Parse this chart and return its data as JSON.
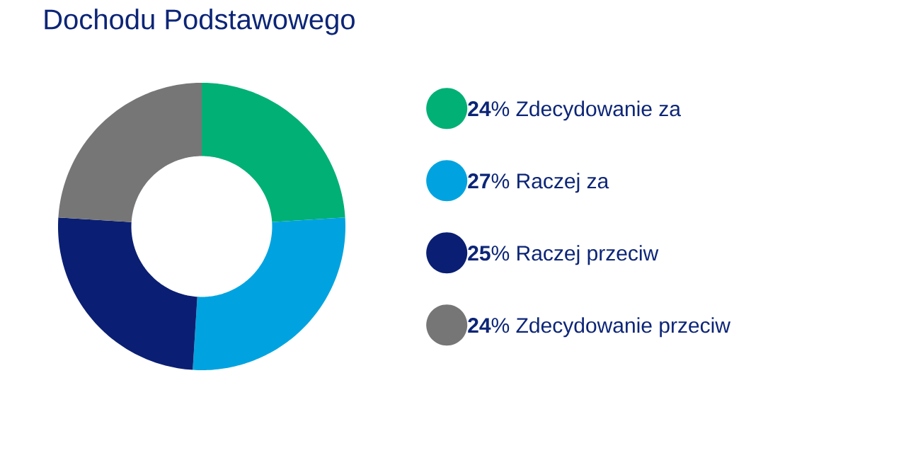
{
  "chart_data": {
    "type": "donut",
    "title": "Dochodu Podstawowego",
    "categories": [
      "Zdecydowanie za",
      "Raczej za",
      "Raczej przeciw",
      "Zdecydowanie przeciw"
    ],
    "values": [
      24,
      27,
      25,
      24
    ],
    "colors": [
      "#00b075",
      "#00a3e0",
      "#0a1f73",
      "#767676"
    ],
    "value_labels": [
      "**24**%",
      "**27**%",
      "**25**%",
      "**24**%"
    ],
    "legend": "right"
  }
}
